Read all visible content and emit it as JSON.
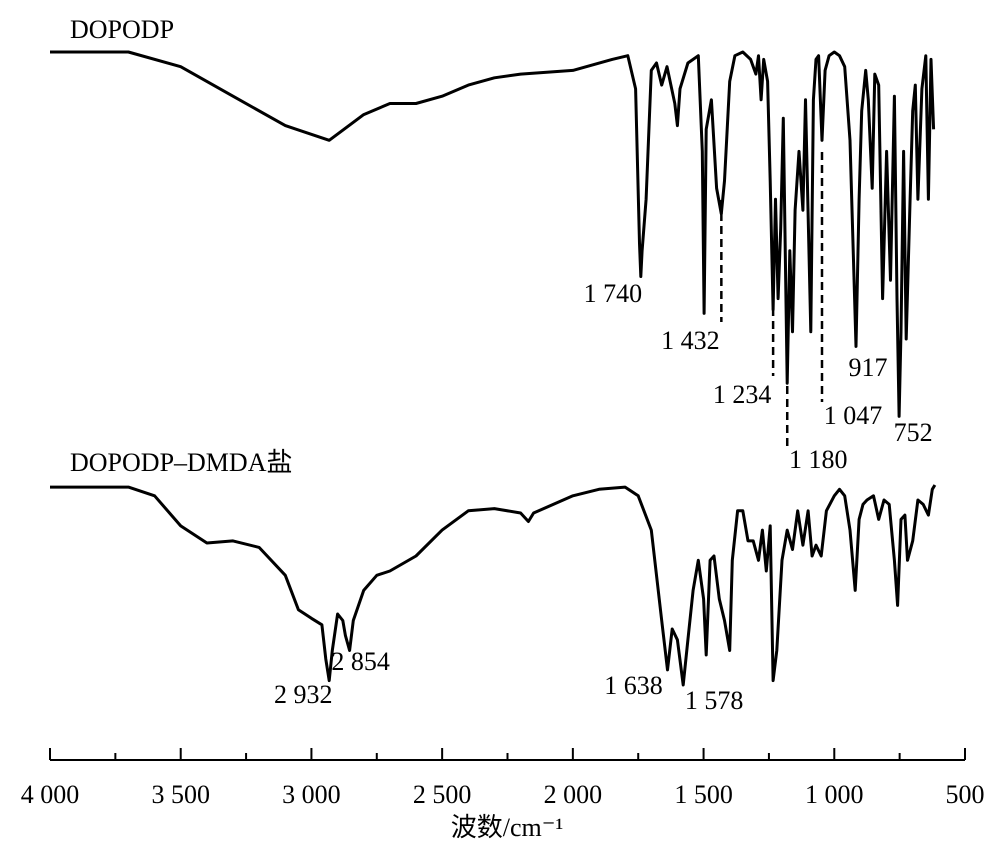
{
  "chart_data": {
    "type": "line",
    "xlabel": "波数/cm⁻¹",
    "xlim": [
      4000,
      500
    ],
    "xticks": [
      {
        "value": 4000,
        "label": "4 000"
      },
      {
        "value": 3500,
        "label": "3 500"
      },
      {
        "value": 3000,
        "label": "3 000"
      },
      {
        "value": 2500,
        "label": "2 500"
      },
      {
        "value": 2000,
        "label": "2 000"
      },
      {
        "value": 1500,
        "label": "1 500"
      },
      {
        "value": 1000,
        "label": "1 000"
      },
      500
    ],
    "xminorticks": [
      3750,
      3250,
      2750,
      2250,
      1750,
      1250,
      750
    ],
    "series": [
      {
        "name": "DOPODP",
        "color": "#000000",
        "ylim": [
          0,
          100
        ],
        "x": [
          4000,
          3700,
          3500,
          3300,
          3100,
          2932,
          2800,
          2700,
          2600,
          2500,
          2400,
          2300,
          2200,
          2000,
          1850,
          1790,
          1760,
          1745,
          1740,
          1735,
          1720,
          1700,
          1680,
          1660,
          1640,
          1610,
          1600,
          1590,
          1560,
          1540,
          1520,
          1505,
          1498,
          1490,
          1470,
          1450,
          1432,
          1420,
          1400,
          1380,
          1350,
          1320,
          1300,
          1290,
          1280,
          1270,
          1255,
          1245,
          1234,
          1225,
          1215,
          1205,
          1195,
          1180,
          1170,
          1160,
          1150,
          1135,
          1120,
          1110,
          1090,
          1080,
          1070,
          1060,
          1047,
          1035,
          1020,
          1000,
          980,
          960,
          940,
          917,
          905,
          895,
          880,
          870,
          855,
          845,
          830,
          815,
          800,
          785,
          770,
          760,
          752,
          745,
          735,
          725,
          710,
          700,
          690,
          680,
          665,
          650,
          640,
          630,
          620
        ],
        "values": [
          100,
          100,
          96,
          88,
          80,
          76,
          83,
          86,
          86,
          88,
          91,
          93,
          94,
          95,
          98,
          99,
          90,
          48,
          39,
          46,
          60,
          95,
          97,
          91,
          96,
          86,
          80,
          90,
          97,
          98,
          99,
          73,
          29,
          79,
          87,
          63,
          56,
          65,
          92,
          99,
          100,
          98,
          94,
          99,
          87,
          98,
          92,
          65,
          30,
          60,
          33,
          52,
          82,
          10,
          46,
          24,
          57,
          73,
          57,
          87,
          24,
          87,
          98,
          99,
          76,
          95,
          99,
          100,
          99,
          96,
          76,
          20,
          60,
          84,
          95,
          87,
          63,
          94,
          91,
          33,
          73,
          38,
          88,
          33,
          1,
          24,
          73,
          22,
          60,
          84,
          91,
          60,
          90,
          99,
          60,
          98,
          79
        ],
        "peaks": [
          {
            "value": 1740,
            "label": "1 740"
          },
          {
            "value": 1432,
            "label": "1 432",
            "dashed": true
          },
          {
            "value": 1234,
            "label": "1 234",
            "dashed": true
          },
          {
            "value": 1180,
            "label": "1 180",
            "dashed": true
          },
          {
            "value": 1047,
            "label": "1 047",
            "dashed": true
          },
          {
            "value": 917,
            "label": "917"
          },
          {
            "value": 752,
            "label": "752"
          }
        ]
      },
      {
        "name": "DOPODP–DMDA盐",
        "color": "#000000",
        "ylim": [
          0,
          100
        ],
        "x": [
          4000,
          3700,
          3600,
          3500,
          3400,
          3300,
          3200,
          3100,
          3050,
          3000,
          2960,
          2945,
          2932,
          2920,
          2900,
          2880,
          2870,
          2854,
          2840,
          2800,
          2750,
          2700,
          2600,
          2500,
          2400,
          2300,
          2200,
          2170,
          2150,
          2000,
          1900,
          1800,
          1750,
          1700,
          1660,
          1638,
          1620,
          1600,
          1578,
          1560,
          1540,
          1520,
          1500,
          1490,
          1475,
          1460,
          1440,
          1420,
          1400,
          1390,
          1370,
          1350,
          1330,
          1310,
          1290,
          1275,
          1260,
          1245,
          1234,
          1220,
          1200,
          1180,
          1160,
          1140,
          1120,
          1100,
          1085,
          1070,
          1050,
          1030,
          1000,
          980,
          960,
          940,
          920,
          905,
          890,
          875,
          850,
          830,
          810,
          790,
          770,
          758,
          745,
          730,
          720,
          700,
          680,
          660,
          640,
          625,
          615
        ],
        "values": [
          99,
          99,
          95,
          81,
          73,
          74,
          71,
          58,
          42,
          38,
          35,
          19,
          9,
          23,
          40,
          37,
          30,
          23,
          37,
          51,
          58,
          60,
          67,
          79,
          88,
          89,
          87,
          83,
          87,
          95,
          98,
          99,
          95,
          79,
          37,
          14,
          33,
          28,
          7,
          28,
          51,
          65,
          47,
          21,
          65,
          67,
          47,
          37,
          23,
          65,
          88,
          88,
          74,
          74,
          65,
          79,
          60,
          81,
          9,
          23,
          65,
          79,
          70,
          88,
          72,
          88,
          67,
          72,
          67,
          88,
          95,
          98,
          95,
          79,
          51,
          84,
          91,
          93,
          95,
          84,
          93,
          91,
          65,
          44,
          84,
          86,
          65,
          74,
          93,
          91,
          86,
          98,
          100
        ],
        "peaks": [
          {
            "value": 2932,
            "label": "2 932"
          },
          {
            "value": 2854,
            "label": "2 854"
          },
          {
            "value": 1638,
            "label": "1 638"
          },
          {
            "value": 1578,
            "label": "1 578"
          }
        ]
      }
    ]
  }
}
